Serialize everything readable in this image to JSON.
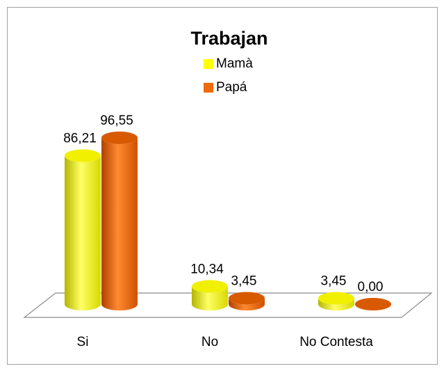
{
  "chart_data": {
    "type": "bar3d",
    "title": "Trabajan",
    "categories": [
      "Si",
      "No",
      "No Contesta"
    ],
    "series": [
      {
        "name": "Mamà",
        "color": "#ffff00",
        "values": [
          86.21,
          10.34,
          3.45
        ],
        "value_labels": [
          "86,21",
          "10,34",
          "3,45"
        ]
      },
      {
        "name": "Papá",
        "color": "#f26a0a",
        "values": [
          96.55,
          3.45,
          0.0
        ],
        "value_labels": [
          "96,55",
          "3,45",
          "0,00"
        ]
      }
    ]
  }
}
